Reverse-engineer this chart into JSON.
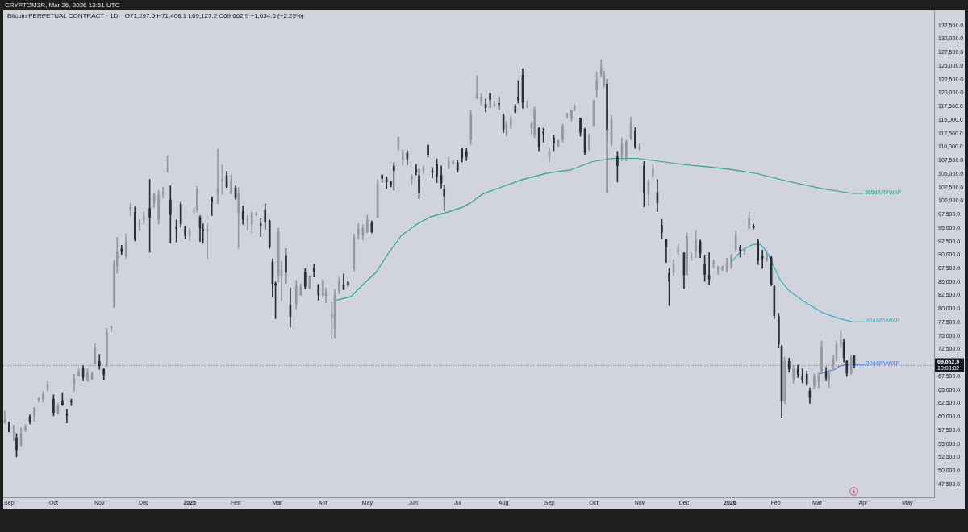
{
  "chart_data": {
    "type": "candlestick",
    "title": "Bitcoin PERPETUAL CONTRACT · 1D",
    "subtitle": "O71,297.5 H71,408.1 L69,127.2 C69,662.9 −1,634.6 (−2.29%)",
    "annotations": [
      "CRYPTOM3R, Mar 26, 2026 13:51 UTC",
      {
        "text": "10:08:02",
        "y": 69662.9
      }
    ],
    "x": [
      "2024-08-29",
      "2024-09-01",
      "2024-09-04",
      "2024-09-06",
      "2024-09-09",
      "2024-09-12",
      "2024-09-15",
      "2024-09-18",
      "2024-09-21",
      "2024-09-24",
      "2024-09-27",
      "2024-10-01",
      "2024-10-04",
      "2024-10-07",
      "2024-10-10",
      "2024-10-13",
      "2024-10-15",
      "2024-10-18",
      "2024-10-21",
      "2024-10-24",
      "2024-10-27",
      "2024-10-29",
      "2024-11-01",
      "2024-11-04",
      "2024-11-06",
      "2024-11-09",
      "2024-11-11",
      "2024-11-13",
      "2024-11-16",
      "2024-11-19",
      "2024-11-22",
      "2024-11-25",
      "2024-11-28",
      "2024-12-01",
      "2024-12-05",
      "2024-12-08",
      "2024-12-11",
      "2024-12-14",
      "2024-12-17",
      "2024-12-19",
      "2024-12-23",
      "2024-12-26",
      "2024-12-29",
      "2025-01-01",
      "2025-01-04",
      "2025-01-06",
      "2025-01-08",
      "2025-01-10",
      "2025-01-13",
      "2025-01-16",
      "2025-01-20",
      "2025-01-23",
      "2025-01-26",
      "2025-01-29",
      "2025-02-01",
      "2025-02-03",
      "2025-02-06",
      "2025-02-09",
      "2025-02-12",
      "2025-02-15",
      "2025-02-18",
      "2025-02-21",
      "2025-02-24",
      "2025-02-26",
      "2025-02-28",
      "2025-03-02",
      "2025-03-04",
      "2025-03-07",
      "2025-03-10",
      "2025-03-14",
      "2025-03-17",
      "2025-03-20",
      "2025-03-23",
      "2025-03-26",
      "2025-03-29",
      "2025-04-01",
      "2025-04-03",
      "2025-04-07",
      "2025-04-09",
      "2025-04-12",
      "2025-04-15",
      "2025-04-18",
      "2025-04-22",
      "2025-04-25",
      "2025-04-28",
      "2025-05-01",
      "2025-05-04",
      "2025-05-08",
      "2025-05-11",
      "2025-05-14",
      "2025-05-17",
      "2025-05-19",
      "2025-05-22",
      "2025-05-25",
      "2025-05-28",
      "2025-05-31",
      "2025-06-03",
      "2025-06-05",
      "2025-06-08",
      "2025-06-11",
      "2025-06-14",
      "2025-06-17",
      "2025-06-20",
      "2025-06-22",
      "2025-06-25",
      "2025-06-28",
      "2025-07-01",
      "2025-07-04",
      "2025-07-07",
      "2025-07-10",
      "2025-07-14",
      "2025-07-17",
      "2025-07-20",
      "2025-07-23",
      "2025-07-26",
      "2025-07-29",
      "2025-08-01",
      "2025-08-03",
      "2025-08-06",
      "2025-08-09",
      "2025-08-11",
      "2025-08-14",
      "2025-08-17",
      "2025-08-20",
      "2025-08-22",
      "2025-08-25",
      "2025-08-28",
      "2025-09-01",
      "2025-09-04",
      "2025-09-07",
      "2025-09-10",
      "2025-09-13",
      "2025-09-16",
      "2025-09-18",
      "2025-09-22",
      "2025-09-25",
      "2025-09-28",
      "2025-10-01",
      "2025-10-03",
      "2025-10-06",
      "2025-10-08",
      "2025-10-10",
      "2025-10-13",
      "2025-10-17",
      "2025-10-20",
      "2025-10-23",
      "2025-10-26",
      "2025-10-29",
      "2025-11-01",
      "2025-11-04",
      "2025-11-07",
      "2025-11-10",
      "2025-11-13",
      "2025-11-16",
      "2025-11-19",
      "2025-11-21",
      "2025-11-24",
      "2025-11-27",
      "2025-12-01",
      "2025-12-03",
      "2025-12-06",
      "2025-12-09",
      "2025-12-12",
      "2025-12-15",
      "2025-12-18",
      "2025-12-21",
      "2025-12-24",
      "2025-12-27",
      "2025-12-30",
      "2026-01-02",
      "2026-01-05",
      "2026-01-08",
      "2026-01-11",
      "2026-01-14",
      "2026-01-17",
      "2026-01-20",
      "2026-01-23",
      "2026-01-26",
      "2026-01-29",
      "2026-01-31",
      "2026-02-03",
      "2026-02-05",
      "2026-02-07",
      "2026-02-10",
      "2026-02-13",
      "2026-02-16",
      "2026-02-19",
      "2026-02-22",
      "2026-02-24",
      "2026-02-27",
      "2026-03-02",
      "2026-03-04",
      "2026-03-07",
      "2026-03-09",
      "2026-03-12",
      "2026-03-14",
      "2026-03-17",
      "2026-03-19",
      "2026-03-21",
      "2026-03-24",
      "2026-03-26"
    ],
    "ohlc": [
      [
        59000,
        61100,
        58800,
        59400
      ],
      [
        58900,
        59100,
        57200,
        57300
      ],
      [
        57900,
        58500,
        55600,
        58000
      ],
      [
        56100,
        56900,
        52600,
        53900
      ],
      [
        54800,
        58000,
        54600,
        57000
      ],
      [
        57600,
        58600,
        57300,
        58100
      ],
      [
        60000,
        60400,
        58700,
        59200
      ],
      [
        60300,
        61800,
        59200,
        61700
      ],
      [
        63200,
        63600,
        62800,
        63300
      ],
      [
        63300,
        64800,
        62700,
        64200
      ],
      [
        65200,
        66500,
        64800,
        65900
      ],
      [
        63300,
        64100,
        60200,
        60800
      ],
      [
        60700,
        62500,
        60500,
        62100
      ],
      [
        63000,
        64500,
        62100,
        62200
      ],
      [
        60600,
        61400,
        58900,
        60300
      ],
      [
        62900,
        63300,
        62100,
        62800
      ],
      [
        66100,
        67900,
        64800,
        67000
      ],
      [
        67600,
        68900,
        67500,
        68400
      ],
      [
        69000,
        69500,
        66700,
        67400
      ],
      [
        66700,
        68900,
        66600,
        68200
      ],
      [
        67000,
        68300,
        66800,
        68000
      ],
      [
        69900,
        73600,
        69800,
        72700
      ],
      [
        70300,
        71600,
        68800,
        69500
      ],
      [
        68800,
        69000,
        66800,
        67800
      ],
      [
        69400,
        76400,
        69300,
        75600
      ],
      [
        76500,
        76900,
        75800,
        76700
      ],
      [
        80400,
        89000,
        80200,
        88700
      ],
      [
        88000,
        93300,
        86600,
        90500
      ],
      [
        91100,
        91800,
        90100,
        90600
      ],
      [
        89800,
        93900,
        89400,
        92300
      ],
      [
        98300,
        99600,
        97200,
        98900
      ],
      [
        97900,
        98900,
        92600,
        93000
      ],
      [
        95700,
        96600,
        94600,
        95700
      ],
      [
        96400,
        98000,
        95800,
        97200
      ],
      [
        98600,
        104000,
        90500,
        97000
      ],
      [
        99800,
        101400,
        98800,
        101100
      ],
      [
        96600,
        101900,
        95700,
        101100
      ],
      [
        101400,
        102600,
        100600,
        101400
      ],
      [
        106000,
        108400,
        105300,
        106100
      ],
      [
        100200,
        102800,
        92200,
        97500
      ],
      [
        95200,
        96500,
        92400,
        94900
      ],
      [
        99400,
        99900,
        95100,
        95800
      ],
      [
        95300,
        95400,
        93000,
        93600
      ],
      [
        93600,
        95000,
        92700,
        94600
      ],
      [
        98100,
        98800,
        97600,
        98300
      ],
      [
        98300,
        102700,
        97900,
        102100
      ],
      [
        96900,
        97300,
        92500,
        95000
      ],
      [
        94700,
        95800,
        92200,
        94500
      ],
      [
        94500,
        95900,
        89300,
        94500
      ],
      [
        100500,
        100800,
        97300,
        99900
      ],
      [
        101300,
        109600,
        99500,
        102300
      ],
      [
        103700,
        106800,
        101200,
        104100
      ],
      [
        104700,
        105500,
        102500,
        102600
      ],
      [
        101300,
        104800,
        101300,
        103700
      ],
      [
        102400,
        102800,
        100300,
        100600
      ],
      [
        97700,
        102500,
        91200,
        101400
      ],
      [
        98000,
        99100,
        95700,
        96600
      ],
      [
        96500,
        97300,
        94700,
        96500
      ],
      [
        95800,
        98100,
        94100,
        97800
      ],
      [
        97500,
        97900,
        97300,
        97600
      ],
      [
        95800,
        96700,
        93400,
        95500
      ],
      [
        98300,
        99500,
        94800,
        96100
      ],
      [
        96300,
        96500,
        91200,
        91500
      ],
      [
        88700,
        89300,
        82300,
        84700
      ],
      [
        84700,
        85000,
        78200,
        84400
      ],
      [
        86100,
        95000,
        85000,
        94300
      ],
      [
        86100,
        88900,
        81500,
        87200
      ],
      [
        89900,
        91200,
        84700,
        86800
      ],
      [
        80700,
        83900,
        76600,
        78600
      ],
      [
        80800,
        85300,
        80000,
        84300
      ],
      [
        82600,
        84700,
        82500,
        84100
      ],
      [
        86800,
        87500,
        83700,
        84200
      ],
      [
        83800,
        86100,
        83800,
        86100
      ],
      [
        87500,
        88300,
        85900,
        86900
      ],
      [
        84400,
        84600,
        81600,
        82600
      ],
      [
        82500,
        85500,
        82400,
        85200
      ],
      [
        82500,
        83900,
        81100,
        83100
      ],
      [
        78400,
        81200,
        74500,
        79100
      ],
      [
        76300,
        83600,
        74600,
        82600
      ],
      [
        83400,
        85900,
        82800,
        85300
      ],
      [
        84500,
        86500,
        83600,
        83600
      ],
      [
        84900,
        85100,
        84200,
        84500
      ],
      [
        87500,
        93900,
        87000,
        93400
      ],
      [
        93900,
        95800,
        92900,
        94800
      ],
      [
        93700,
        95600,
        92800,
        94900
      ],
      [
        94200,
        97400,
        94100,
        96500
      ],
      [
        95900,
        96300,
        94100,
        94300
      ],
      [
        97000,
        104000,
        96900,
        103200
      ],
      [
        104800,
        104900,
        103400,
        104200
      ],
      [
        104200,
        104500,
        102300,
        103500
      ],
      [
        103500,
        103700,
        102600,
        103100
      ],
      [
        106500,
        107100,
        102000,
        105600
      ],
      [
        109700,
        111900,
        109300,
        111700
      ],
      [
        107700,
        109500,
        106600,
        109000
      ],
      [
        108900,
        109300,
        106700,
        107800
      ],
      [
        104000,
        104900,
        103100,
        104600
      ],
      [
        105800,
        106800,
        104800,
        105400
      ],
      [
        104700,
        105900,
        100400,
        101500
      ],
      [
        105700,
        106500,
        105100,
        105700
      ],
      [
        110300,
        110400,
        108100,
        108600
      ],
      [
        105600,
        106200,
        104300,
        105400
      ],
      [
        106800,
        107800,
        103400,
        104600
      ],
      [
        104800,
        106500,
        102400,
        103300
      ],
      [
        102200,
        103000,
        98200,
        100900
      ],
      [
        106100,
        108100,
        105900,
        107300
      ],
      [
        107000,
        107600,
        106800,
        107300
      ],
      [
        107100,
        107500,
        105300,
        105700
      ],
      [
        109600,
        109800,
        107200,
        108000
      ],
      [
        109200,
        109700,
        107500,
        108200
      ],
      [
        111300,
        116800,
        110500,
        116000
      ],
      [
        119100,
        123200,
        118900,
        119800
      ],
      [
        118700,
        120000,
        117800,
        119300
      ],
      [
        117900,
        118900,
        116500,
        117300
      ],
      [
        120000,
        120000,
        117300,
        118800
      ],
      [
        117600,
        118500,
        117500,
        117900
      ],
      [
        118000,
        119300,
        116900,
        117900
      ],
      [
        115800,
        116100,
        112700,
        113300
      ],
      [
        112500,
        114800,
        112000,
        114200
      ],
      [
        114100,
        115700,
        113400,
        115000
      ],
      [
        117500,
        117900,
        116300,
        116500
      ],
      [
        119300,
        122300,
        118100,
        118700
      ],
      [
        123300,
        124500,
        117200,
        118300
      ],
      [
        117400,
        118600,
        117300,
        117500
      ],
      [
        113500,
        114600,
        112400,
        114300
      ],
      [
        112400,
        117400,
        111700,
        116900
      ],
      [
        113500,
        113600,
        109300,
        110100
      ],
      [
        112800,
        113500,
        110900,
        112500
      ],
      [
        108400,
        109900,
        107300,
        109200
      ],
      [
        111700,
        112200,
        109300,
        110700
      ],
      [
        110200,
        111300,
        110100,
        111200
      ],
      [
        111400,
        114300,
        110900,
        113900
      ],
      [
        115900,
        116300,
        115300,
        116000
      ],
      [
        115300,
        116900,
        114800,
        116800
      ],
      [
        116800,
        117900,
        116700,
        117500
      ],
      [
        115300,
        115400,
        112000,
        112700
      ],
      [
        113300,
        113500,
        108600,
        109000
      ],
      [
        109600,
        112400,
        109300,
        112200
      ],
      [
        114000,
        118700,
        113900,
        118600
      ],
      [
        120500,
        123900,
        119300,
        122300
      ],
      [
        123500,
        126200,
        123000,
        124700
      ],
      [
        121400,
        124100,
        121000,
        123300
      ],
      [
        121700,
        122600,
        101500,
        113200
      ],
      [
        110600,
        115800,
        110200,
        115200
      ],
      [
        108200,
        109200,
        103500,
        106500
      ],
      [
        108600,
        111700,
        107400,
        110500
      ],
      [
        107500,
        111300,
        107500,
        111000
      ],
      [
        111600,
        115500,
        111300,
        114500
      ],
      [
        113000,
        113600,
        109700,
        110100
      ],
      [
        109600,
        110600,
        109400,
        110100
      ],
      [
        106500,
        107300,
        98900,
        101500
      ],
      [
        101300,
        104000,
        99200,
        103400
      ],
      [
        104700,
        106700,
        104500,
        105900
      ],
      [
        101600,
        104000,
        98000,
        99700
      ],
      [
        95500,
        96600,
        93000,
        94200
      ],
      [
        92900,
        93000,
        88600,
        91500
      ],
      [
        86600,
        87500,
        80600,
        85100
      ],
      [
        86800,
        89200,
        86100,
        88300
      ],
      [
        90500,
        91900,
        90100,
        91300
      ],
      [
        90400,
        90400,
        83800,
        86300
      ],
      [
        86300,
        94100,
        86300,
        93500
      ],
      [
        89300,
        90300,
        88900,
        89400
      ],
      [
        90700,
        94600,
        89500,
        92700
      ],
      [
        92500,
        92800,
        89500,
        90300
      ],
      [
        88200,
        90000,
        85100,
        86400
      ],
      [
        86200,
        90400,
        84500,
        85500
      ],
      [
        88300,
        89100,
        87600,
        88600
      ],
      [
        87400,
        87900,
        86400,
        87600
      ],
      [
        87300,
        88000,
        87100,
        87800
      ],
      [
        87200,
        89400,
        86800,
        88400
      ],
      [
        87800,
        90200,
        87500,
        89900
      ],
      [
        91000,
        94400,
        90600,
        93600
      ],
      [
        91500,
        91800,
        89600,
        90800
      ],
      [
        90600,
        91300,
        90100,
        91000
      ],
      [
        94900,
        97900,
        94600,
        96900
      ],
      [
        95400,
        95700,
        94800,
        95100
      ],
      [
        92600,
        93000,
        88200,
        89000
      ],
      [
        89800,
        90900,
        87500,
        89400
      ],
      [
        89100,
        90400,
        88800,
        90200
      ],
      [
        89500,
        89800,
        84300,
        84500
      ],
      [
        84200,
        84400,
        78200,
        78800
      ],
      [
        78600,
        79200,
        72800,
        73500
      ],
      [
        73000,
        73300,
        59800,
        62900
      ],
      [
        63000,
        71000,
        62500,
        70300
      ],
      [
        70300,
        70900,
        68300,
        68900
      ],
      [
        67000,
        69500,
        66200,
        69000
      ],
      [
        68800,
        69600,
        67300,
        67900
      ],
      [
        67500,
        68900,
        66300,
        66900
      ],
      [
        67900,
        68500,
        65800,
        66100
      ],
      [
        64800,
        65400,
        62500,
        63600
      ],
      [
        65800,
        68000,
        65200,
        67500
      ],
      [
        66600,
        68200,
        65400,
        67700
      ],
      [
        68500,
        74000,
        68200,
        72900
      ],
      [
        68400,
        69200,
        66700,
        67300
      ],
      [
        66900,
        68700,
        65500,
        68200
      ],
      [
        69500,
        71500,
        68700,
        70800
      ],
      [
        70900,
        74000,
        70400,
        73400
      ],
      [
        73400,
        75900,
        72800,
        74200
      ],
      [
        73900,
        74400,
        70200,
        71000
      ],
      [
        70300,
        70500,
        67500,
        68100
      ],
      [
        68200,
        71500,
        67900,
        71000
      ],
      [
        71297.5,
        71408.1,
        69127.2,
        69662.9
      ]
    ],
    "colors": [
      "#9598a1",
      "#2a2e39",
      "#9598a1",
      "#2a2e39",
      "#9598a1",
      "#9598a1",
      "#2a2e39",
      "#9598a1",
      "#9598a1",
      "#9598a1",
      "#9598a1",
      "#2a2e39",
      "#9598a1",
      "#2a2e39",
      "#2a2e39",
      "#2a2e39",
      "#9598a1",
      "#9598a1",
      "#2a2e39",
      "#9598a1",
      "#9598a1",
      "#9598a1",
      "#2a2e39",
      "#2a2e39",
      "#9598a1",
      "#9598a1",
      "#9598a1",
      "#9598a1",
      "#2a2e39",
      "#9598a1",
      "#9598a1",
      "#2a2e39",
      "#9598a1",
      "#9598a1",
      "#2a2e39",
      "#9598a1",
      "#9598a1",
      "#9598a1",
      "#9598a1",
      "#2a2e39",
      "#2a2e39",
      "#2a2e39",
      "#2a2e39",
      "#9598a1",
      "#9598a1",
      "#9598a1",
      "#2a2e39",
      "#2a2e39",
      "#9598a1",
      "#2a2e39",
      "#9598a1",
      "#9598a1",
      "#2a2e39",
      "#9598a1",
      "#2a2e39",
      "#9598a1",
      "#2a2e39",
      "#9598a1",
      "#9598a1",
      "#9598a1",
      "#2a2e39",
      "#2a2e39",
      "#2a2e39",
      "#2a2e39",
      "#2a2e39",
      "#9598a1",
      "#9598a1",
      "#2a2e39",
      "#2a2e39",
      "#9598a1",
      "#9598a1",
      "#2a2e39",
      "#9598a1",
      "#2a2e39",
      "#2a2e39",
      "#9598a1",
      "#9598a1",
      "#9598a1",
      "#9598a1",
      "#9598a1",
      "#2a2e39",
      "#2a2e39",
      "#9598a1",
      "#9598a1",
      "#9598a1",
      "#9598a1",
      "#2a2e39",
      "#9598a1",
      "#2a2e39",
      "#2a2e39",
      "#2a2e39",
      "#2a2e39",
      "#9598a1",
      "#9598a1",
      "#2a2e39",
      "#9598a1",
      "#2a2e39",
      "#2a2e39",
      "#9598a1",
      "#2a2e39",
      "#2a2e39",
      "#2a2e39",
      "#2a2e39",
      "#2a2e39",
      "#9598a1",
      "#9598a1",
      "#2a2e39",
      "#2a2e39",
      "#2a2e39",
      "#9598a1",
      "#9598a1",
      "#9598a1",
      "#2a2e39",
      "#2a2e39",
      "#9598a1",
      "#2a2e39",
      "#2a2e39",
      "#9598a1",
      "#9598a1",
      "#2a2e39",
      "#2a2e39",
      "#2a2e39",
      "#9598a1",
      "#9598a1",
      "#9598a1",
      "#2a2e39",
      "#2a2e39",
      "#9598a1",
      "#2a2e39",
      "#9598a1",
      "#9598a1",
      "#9598a1",
      "#9598a1",
      "#9598a1",
      "#2a2e39",
      "#2a2e39",
      "#9598a1",
      "#9598a1",
      "#9598a1",
      "#9598a1",
      "#9598a1",
      "#2a2e39",
      "#9598a1",
      "#2a2e39",
      "#9598a1",
      "#9598a1",
      "#9598a1",
      "#2a2e39",
      "#9598a1",
      "#2a2e39",
      "#9598a1",
      "#9598a1",
      "#2a2e39",
      "#2a2e39",
      "#2a2e39",
      "#2a2e39",
      "#9598a1",
      "#9598a1",
      "#2a2e39",
      "#9598a1",
      "#9598a1",
      "#9598a1",
      "#2a2e39",
      "#2a2e39",
      "#2a2e39",
      "#9598a1",
      "#9598a1",
      "#9598a1",
      "#9598a1",
      "#9598a1",
      "#9598a1",
      "#2a2e39",
      "#9598a1",
      "#9598a1",
      "#2a2e39",
      "#2a2e39",
      "#2a2e39",
      "#9598a1",
      "#2a2e39",
      "#2a2e39",
      "#2a2e39",
      "#2a2e39",
      "#9598a1",
      "#2a2e39",
      "#9598a1",
      "#2a2e39",
      "#2a2e39",
      "#2a2e39",
      "#2a2e39",
      "#9598a1",
      "#9598a1",
      "#9598a1",
      "#2a2e39",
      "#9598a1",
      "#9598a1",
      "#9598a1",
      "#9598a1",
      "#2a2e39",
      "#2a2e39",
      "#9598a1",
      "#2a2e39"
    ],
    "series": [
      {
        "type": "line",
        "name": "365dARVWAP",
        "color": "#26a48f",
        "x": [
          "2025-04-10",
          "2025-04-20",
          "2025-04-28",
          "2025-05-07",
          "2025-05-15",
          "2025-05-24",
          "2025-06-03",
          "2025-06-13",
          "2025-06-24",
          "2025-07-04",
          "2025-07-10",
          "2025-07-18",
          "2025-07-29",
          "2025-08-14",
          "2025-08-31",
          "2025-09-16",
          "2025-09-30",
          "2025-10-14",
          "2025-10-30",
          "2025-11-16",
          "2025-12-02",
          "2025-12-18",
          "2026-01-03",
          "2026-01-19",
          "2026-02-10",
          "2026-03-04",
          "2026-03-25",
          "2026-04-01"
        ],
        "values": [
          81600,
          82300,
          84500,
          86800,
          90200,
          93600,
          95600,
          97100,
          97900,
          98800,
          99700,
          101300,
          102400,
          104000,
          105200,
          105800,
          107300,
          107900,
          107900,
          107300,
          106700,
          106300,
          105800,
          105100,
          103600,
          102300,
          101400,
          101400
        ]
      },
      {
        "type": "line",
        "name": "90dARVWAP",
        "color": "#35b3c6",
        "x": [
          "2026-01-02",
          "2026-01-09",
          "2026-01-17",
          "2026-01-22",
          "2026-01-27",
          "2026-02-04",
          "2026-02-10",
          "2026-02-21",
          "2026-03-04",
          "2026-03-15",
          "2026-03-25",
          "2026-04-02"
        ],
        "values": [
          88700,
          90900,
          92000,
          91900,
          90100,
          85400,
          83400,
          81200,
          79400,
          78300,
          77600,
          77600
        ]
      },
      {
        "type": "line",
        "name": "30dARVWAP",
        "color": "#4a7de6",
        "x": [
          "2026-03-03",
          "2026-03-13",
          "2026-03-16",
          "2026-03-20",
          "2026-04-02"
        ],
        "values": [
          68000,
          68800,
          69400,
          69700,
          69700
        ]
      }
    ],
    "xlim": [
      "2024-08-28",
      "2026-05-19"
    ],
    "xticks": [
      {
        "value": "2024-09-01",
        "label": "Sep"
      },
      {
        "value": "2024-10-01",
        "label": "Oct"
      },
      {
        "value": "2024-11-01",
        "label": "Nov"
      },
      {
        "value": "2024-12-01",
        "label": "Dec"
      },
      {
        "value": "2025-01-01",
        "label": "2025"
      },
      {
        "value": "2025-02-01",
        "label": "Feb"
      },
      {
        "value": "2025-03-01",
        "label": "Mar"
      },
      {
        "value": "2025-04-01",
        "label": "Apr"
      },
      {
        "value": "2025-05-01",
        "label": "May"
      },
      {
        "value": "2025-06-01",
        "label": "Jun"
      },
      {
        "value": "2025-07-01",
        "label": "Jul"
      },
      {
        "value": "2025-08-01",
        "label": "Aug"
      },
      {
        "value": "2025-09-01",
        "label": "Sep"
      },
      {
        "value": "2025-10-01",
        "label": "Oct"
      },
      {
        "value": "2025-11-01",
        "label": "Nov"
      },
      {
        "value": "2025-12-01",
        "label": "Dec"
      },
      {
        "value": "2026-01-01",
        "label": "2026"
      },
      {
        "value": "2026-02-01",
        "label": "Feb"
      },
      {
        "value": "2026-03-01",
        "label": "Mar"
      },
      {
        "value": "2026-04-01",
        "label": "Apr"
      },
      {
        "value": "2026-05-01",
        "label": "May"
      }
    ],
    "ylim": [
      45100,
      135300
    ],
    "yticks": [
      {
        "value": 47500,
        "label": "47,500.0"
      },
      {
        "value": 50000,
        "label": "50,000.0"
      },
      {
        "value": 52500,
        "label": "52,500.0"
      },
      {
        "value": 55000,
        "label": "55,000.0"
      },
      {
        "value": 57500,
        "label": "57,500.0"
      },
      {
        "value": 60000,
        "label": "60,000.0"
      },
      {
        "value": 62500,
        "label": "62,500.0"
      },
      {
        "value": 65000,
        "label": "65,000.0"
      },
      {
        "value": 67500,
        "label": "67,500.0"
      },
      {
        "value": 72500,
        "label": "72,500.0"
      },
      {
        "value": 75000,
        "label": "75,000.0"
      },
      {
        "value": 77500,
        "label": "77,500.0"
      },
      {
        "value": 80000,
        "label": "80,000.0"
      },
      {
        "value": 82500,
        "label": "82,500.0"
      },
      {
        "value": 85000,
        "label": "85,000.0"
      },
      {
        "value": 87500,
        "label": "87,500.0"
      },
      {
        "value": 90000,
        "label": "90,000.0"
      },
      {
        "value": 92500,
        "label": "92,500.0"
      },
      {
        "value": 95000,
        "label": "95,000.0"
      },
      {
        "value": 97500,
        "label": "97,500.0"
      },
      {
        "value": 100000,
        "label": "100,000.0"
      },
      {
        "value": 102500,
        "label": "102,500.0"
      },
      {
        "value": 105000,
        "label": "105,000.0"
      },
      {
        "value": 107500,
        "label": "107,500.0"
      },
      {
        "value": 110000,
        "label": "110,000.0"
      },
      {
        "value": 112500,
        "label": "112,500.0"
      },
      {
        "value": 115000,
        "label": "115,000.0"
      },
      {
        "value": 117500,
        "label": "117,500.0"
      },
      {
        "value": 120000,
        "label": "120,000.0"
      },
      {
        "value": 122500,
        "label": "122,500.0"
      },
      {
        "value": 125000,
        "label": "125,000.0"
      },
      {
        "value": 127500,
        "label": "127,500.0"
      },
      {
        "value": 130000,
        "label": "130,000.0"
      },
      {
        "value": 132500,
        "label": "132,500.0"
      }
    ],
    "ref_lines": [
      {
        "axis": "y",
        "value": 69662.9,
        "label": "69,662.9",
        "color": "#787b86",
        "line_style": "dotted"
      }
    ]
  }
}
